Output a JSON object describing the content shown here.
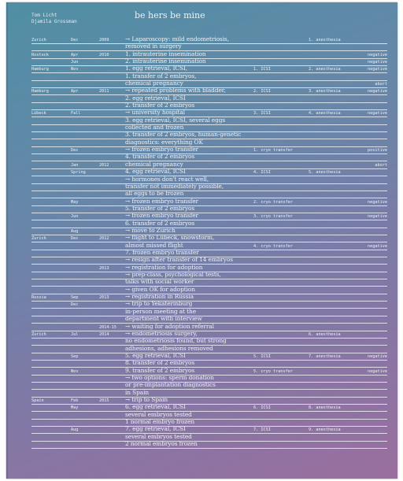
{
  "authors": [
    "Tom Licht",
    "Djamila Grossman"
  ],
  "title": "be hers be mine",
  "rows": [
    {
      "city": "Zurich",
      "month": "Dec",
      "year": "2009",
      "text": "→ Laparoscopy: mild endometriosis,",
      "anest": "1. anesthesia"
    },
    {
      "text": "removed in surgery"
    },
    {
      "city": "Rostock",
      "month": "Apr",
      "year": "2010",
      "text": "1. intrauterine insemination",
      "res": "negative"
    },
    {
      "month": "Jun",
      "text": "2. intrauterine insemination",
      "res": "negative"
    },
    {
      "city": "Hamburg",
      "month": "Nov",
      "text": "1. egg retrieval, ICSI,",
      "proc": "1. ICSI",
      "anest": "2. anesthesia",
      "res": "negative"
    },
    {
      "text": "1. transfer of 2 embryos,"
    },
    {
      "text": "chemical pregnancy",
      "res": "abort"
    },
    {
      "city": "Hamburg",
      "month": "Apr",
      "year": "2011",
      "text": "→ repeated problems with bladder,",
      "proc": "2. ICSI",
      "anest": "3. anesthesia",
      "res": "negative"
    },
    {
      "text": "2. egg retrieval, ICSI"
    },
    {
      "text": "2. transfer of 2 embryos"
    },
    {
      "city": "Lübeck",
      "month": "Fall",
      "text": "→ university hospital",
      "proc": "3. ICSI",
      "anest": "4. anesthesia",
      "res": "negative"
    },
    {
      "text": "3. egg retrieval, ICSI, several eggs"
    },
    {
      "text": "collected and frozen"
    },
    {
      "text": "3. transfer of 2 embryos, human-genetic"
    },
    {
      "text": "diagnostics: everything OK"
    },
    {
      "month": "Dec",
      "text": "→ frozen embryo transfer",
      "proc": "1. cryo transfer",
      "res": "positive"
    },
    {
      "text": "4. transfer of 2 embryos"
    },
    {
      "month": "Jan",
      "year": "2012",
      "text": "chemical pregnancy",
      "res": "abort"
    },
    {
      "month": "Spring",
      "text": "4. egg retrieval, ICSI",
      "proc": "4. ICSI",
      "anest": "5. anesthesia"
    },
    {
      "text": "→ hormones don't react well,"
    },
    {
      "text": "transfer not immediately possible,"
    },
    {
      "text": "all eggs to be frozen"
    },
    {
      "month": "May",
      "text": "→ frozen embryo transfer",
      "proc": "2. cryo transfer",
      "res": "negative"
    },
    {
      "text": "5. transfer of 2 embryos"
    },
    {
      "month": "Jun",
      "text": "→ frozen embryo transfer",
      "proc": "3. cryo transfer",
      "res": "negative"
    },
    {
      "text": "6. transfer of 2 embryos"
    },
    {
      "month": "Aug",
      "text": "→ move to Zurich"
    },
    {
      "city": "Zurich",
      "month": "Dec",
      "year": "2012",
      "text": "→ flight to Lübeck, snowstorm,"
    },
    {
      "text": "almost missed flight",
      "proc": "4. cryo transfer",
      "res": "negative"
    },
    {
      "text": "7. frozen embryo transfer"
    },
    {
      "text": "→ resign after transfer of 14 embryos"
    },
    {
      "year": "2013",
      "text": "→ registration for adoption"
    },
    {
      "text": "→ prep-class, psychological tests,"
    },
    {
      "text": "talks with social worker"
    },
    {
      "text": "→ given OK for adoption"
    },
    {
      "city": "Russia",
      "month": "Sep",
      "year": "2013",
      "text": "→ registration in Russia"
    },
    {
      "month": "Dec",
      "text": "→ trip to Yekaterinburg"
    },
    {
      "text": "in-person meeting at the"
    },
    {
      "text": "department with interview"
    },
    {
      "year": "2014-15",
      "text": "→ waiting for adoption referral"
    },
    {
      "city": "Zurich",
      "month": "Jul",
      "year": "2014",
      "text": "→ endometriosis surgery,",
      "anest": "6. anesthesia"
    },
    {
      "text": "no endometriosis found, but strong"
    },
    {
      "text": "adhesions, adhesions removed"
    },
    {
      "month": "Sep",
      "text": "5. egg retrieval, ICSI",
      "proc": "5. ICSI",
      "anest": "7. anesthesia",
      "res": "negative"
    },
    {
      "text": "8. transfer of 2 embryos"
    },
    {
      "month": "Nov",
      "text": "9. transfer of 2 embryos",
      "proc": "5. cryo transfer",
      "res": "negative"
    },
    {
      "text": "→ two options: sperm donation"
    },
    {
      "text": "or pre-implantation diagnostics"
    },
    {
      "text": "in Spain"
    },
    {
      "city": "Spain",
      "month": "Feb",
      "year": "2015",
      "text": "→ trip to Spain"
    },
    {
      "month": "May",
      "text": "6. egg retrieval, ICSI",
      "proc": "6. ICSI",
      "anest": "8. anesthesia"
    },
    {
      "text": "several embryos tested"
    },
    {
      "text": "1 normal embryo frozen"
    },
    {
      "month": "Aug",
      "text": "7. egg retrieval, ICSI",
      "proc": "7. ICSI",
      "anest": "9. anesthesia"
    },
    {
      "text": "several embryos tested"
    },
    {
      "text": "2 normal embryos frozen"
    }
  ]
}
